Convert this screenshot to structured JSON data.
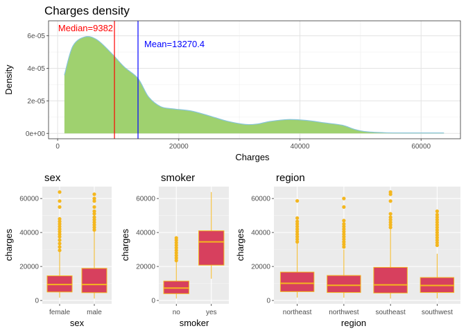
{
  "chart_data": [
    {
      "type": "area",
      "title": "Charges density",
      "xlabel": "Charges",
      "ylabel": "Density",
      "xlim": [
        -1500,
        66500
      ],
      "ylim": [
        -3.3e-06,
        6.92e-05
      ],
      "x_ticks": [
        0,
        20000,
        40000,
        60000
      ],
      "x_tick_labels": [
        "0",
        "20000",
        "40000",
        "60000"
      ],
      "y_ticks": [
        0,
        2e-05,
        4e-05,
        6e-05
      ],
      "y_tick_labels": [
        "0e+00",
        "2e-05",
        "4e-05",
        "6e-05"
      ],
      "grid": true,
      "fill_color": "#9fd16f",
      "line_color": "#87c4d8",
      "x": [
        1122,
        2500,
        4500,
        6500,
        9000,
        11000,
        13270,
        15000,
        17000,
        19000,
        22000,
        25000,
        28000,
        31000,
        33000,
        35000,
        38000,
        41000,
        44000,
        47000,
        49000,
        51000,
        54000,
        57000,
        60000,
        63770
      ],
      "y": [
        3.58e-05,
        5.35e-05,
        5.93e-05,
        5.75e-05,
        4.88e-05,
        4.08e-05,
        3.38e-05,
        2.25e-05,
        1.65e-05,
        1.51e-05,
        1.38e-05,
        1.08e-05,
        7.5e-06,
        5.5e-06,
        5.8e-06,
        7.3e-06,
        8.5e-06,
        8e-06,
        6.5e-06,
        5e-06,
        2.5e-06,
        1e-06,
        4e-07,
        3e-07,
        3e-07,
        3e-07
      ],
      "annotations": [
        {
          "label": "Median=9382",
          "x": 9382,
          "color": "#ff0000"
        },
        {
          "label": "Mean=13270.4",
          "x": 13270.4,
          "color": "#0000ff"
        }
      ]
    },
    {
      "type": "box",
      "title": "sex",
      "xlabel": "sex",
      "ylabel": "charges",
      "categories": [
        "female",
        "male"
      ],
      "ylim": [
        -2000,
        67000
      ],
      "y_ticks": [
        0,
        20000,
        40000,
        60000
      ],
      "y_tick_labels": [
        "0",
        "20000",
        "40000",
        "60000"
      ],
      "box_fill": "#d7405e",
      "box_line": "#f4b71f",
      "boxes": [
        {
          "q1": 5000,
          "median": 9400,
          "q3": 14500,
          "whisker_low": 1600,
          "whisker_high": 28500,
          "outliers": [
            29500,
            31500,
            33500,
            35500,
            37500,
            39000,
            40500,
            42000,
            43500,
            45000,
            46500,
            48000,
            55000,
            58500,
            63800
          ]
        },
        {
          "q1": 4600,
          "median": 9400,
          "q3": 18900,
          "whisker_low": 1100,
          "whisker_high": 40500,
          "outliers": [
            41500,
            43000,
            44500,
            46000,
            47500,
            49000,
            51000,
            52500,
            55000,
            58500,
            60000,
            62500
          ]
        }
      ]
    },
    {
      "type": "box",
      "title": "smoker",
      "xlabel": "smoker",
      "ylabel": "charges",
      "categories": [
        "no",
        "yes"
      ],
      "ylim": [
        -2000,
        67000
      ],
      "y_ticks": [
        0,
        20000,
        40000,
        60000
      ],
      "y_tick_labels": [
        "0",
        "20000",
        "40000",
        "60000"
      ],
      "box_fill": "#d7405e",
      "box_line": "#f4b71f",
      "boxes": [
        {
          "q1": 4000,
          "median": 7300,
          "q3": 11400,
          "whisker_low": 1100,
          "whisker_high": 22500,
          "outliers": [
            23500,
            25000,
            26500,
            28000,
            29500,
            31000,
            32500,
            34000,
            35500,
            36800
          ]
        },
        {
          "q1": 20800,
          "median": 34500,
          "q3": 41000,
          "whisker_low": 12800,
          "whisker_high": 63800,
          "outliers": []
        }
      ]
    },
    {
      "type": "box",
      "title": "region",
      "xlabel": "region",
      "ylabel": "charges",
      "categories": [
        "northeast",
        "northwest",
        "southeast",
        "southwest"
      ],
      "ylim": [
        -2000,
        67000
      ],
      "y_ticks": [
        0,
        20000,
        40000,
        60000
      ],
      "y_tick_labels": [
        "0",
        "20000",
        "40000",
        "60000"
      ],
      "box_fill": "#d7405e",
      "box_line": "#f4b71f",
      "boxes": [
        {
          "q1": 5200,
          "median": 10100,
          "q3": 16700,
          "whisker_low": 1700,
          "whisker_high": 33500,
          "outliers": [
            34500,
            36000,
            37500,
            39000,
            40500,
            42000,
            43500,
            45000,
            46500,
            48500,
            58600
          ]
        },
        {
          "q1": 4700,
          "median": 8900,
          "q3": 14700,
          "whisker_low": 1600,
          "whisker_high": 30000,
          "outliers": [
            31500,
            33000,
            34500,
            36000,
            37500,
            39000,
            40500,
            42000,
            43500,
            45000,
            47000,
            55000,
            60000
          ]
        },
        {
          "q1": 4400,
          "median": 9200,
          "q3": 19500,
          "whisker_low": 1100,
          "whisker_high": 42000,
          "outliers": [
            43000,
            44500,
            46000,
            47500,
            49000,
            51000,
            58500,
            62500,
            63800
          ]
        },
        {
          "q1": 4700,
          "median": 8800,
          "q3": 13500,
          "whisker_low": 1200,
          "whisker_high": 27500,
          "outliers": [
            32500,
            34000,
            35500,
            37000,
            38500,
            40000,
            41500,
            43000,
            44500,
            46000,
            47500,
            49000,
            50500,
            52500
          ]
        }
      ]
    }
  ]
}
